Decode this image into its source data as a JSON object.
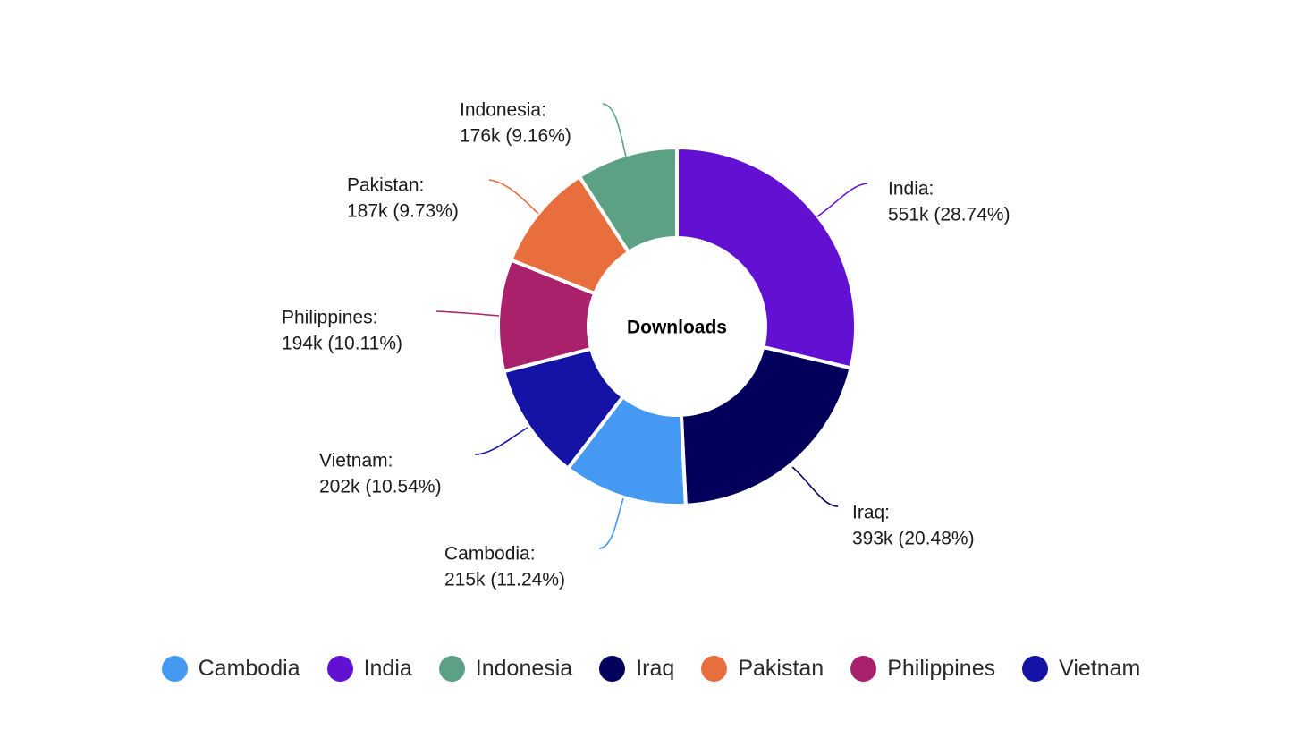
{
  "chart_data": {
    "type": "pie",
    "title": "",
    "center_label": "Downloads",
    "slices": [
      {
        "name": "India",
        "value": 551,
        "percent": 28.74,
        "value_label": "551k",
        "percent_label": "(28.74%)",
        "color": "#6211D2"
      },
      {
        "name": "Iraq",
        "value": 393,
        "percent": 20.48,
        "value_label": "393k",
        "percent_label": "(20.48%)",
        "color": "#02005A"
      },
      {
        "name": "Cambodia",
        "value": 215,
        "percent": 11.24,
        "value_label": "215k",
        "percent_label": "(11.24%)",
        "color": "#4599F2"
      },
      {
        "name": "Vietnam",
        "value": 202,
        "percent": 10.54,
        "value_label": "202k",
        "percent_label": "(10.54%)",
        "color": "#1413A5"
      },
      {
        "name": "Philippines",
        "value": 194,
        "percent": 10.11,
        "value_label": "194k",
        "percent_label": "(10.11%)",
        "color": "#AA216B"
      },
      {
        "name": "Pakistan",
        "value": 187,
        "percent": 9.73,
        "value_label": "187k",
        "percent_label": "(9.73%)",
        "color": "#E86E3E"
      },
      {
        "name": "Indonesia",
        "value": 176,
        "percent": 9.16,
        "value_label": "176k",
        "percent_label": "(9.16%)",
        "color": "#5CA183"
      }
    ],
    "legend": {
      "placement": "bottom",
      "items": [
        {
          "label": "Cambodia",
          "color": "#4599F2"
        },
        {
          "label": "India",
          "color": "#6211D2"
        },
        {
          "label": "Indonesia",
          "color": "#5CA183"
        },
        {
          "label": "Iraq",
          "color": "#02005A"
        },
        {
          "label": "Pakistan",
          "color": "#E86E3E"
        },
        {
          "label": "Philippines",
          "color": "#AA216B"
        },
        {
          "label": "Vietnam",
          "color": "#1413A5"
        }
      ]
    }
  }
}
